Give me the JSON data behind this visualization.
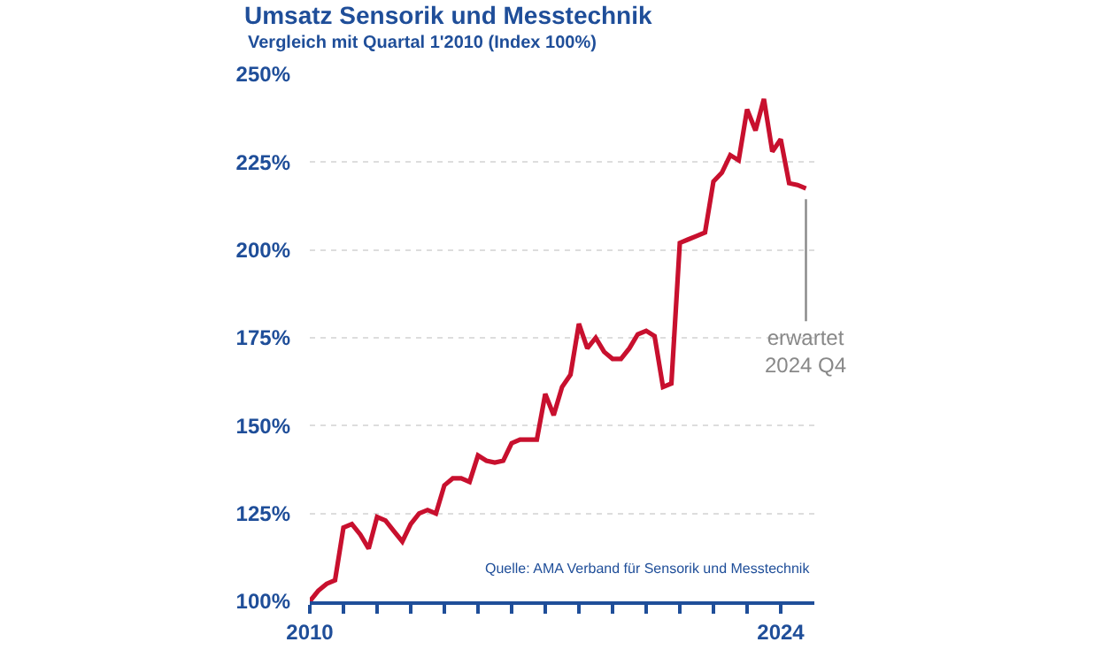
{
  "chart_data": {
    "type": "line",
    "title": "Umsatz Sensorik und Messtechnik",
    "subtitle": "Vergleich mit Quartal 1'2010 (Index 100%)",
    "x": [
      2010.0,
      2010.25,
      2010.5,
      2010.75,
      2011.0,
      2011.25,
      2011.5,
      2011.75,
      2012.0,
      2012.25,
      2012.5,
      2012.75,
      2013.0,
      2013.25,
      2013.5,
      2013.75,
      2014.0,
      2014.25,
      2014.5,
      2014.75,
      2015.0,
      2015.25,
      2015.5,
      2015.75,
      2016.0,
      2016.25,
      2016.5,
      2016.75,
      2017.0,
      2017.25,
      2017.5,
      2017.75,
      2018.0,
      2018.25,
      2018.5,
      2018.75,
      2019.0,
      2019.25,
      2019.5,
      2019.75,
      2020.0,
      2020.25,
      2020.5,
      2020.75,
      2021.0,
      2021.25,
      2021.5,
      2021.75,
      2022.0,
      2022.25,
      2022.5,
      2022.75,
      2023.0,
      2023.25,
      2023.5,
      2023.75,
      2024.0,
      2024.25,
      2024.5,
      2024.75
    ],
    "series": [
      {
        "color": "#c8102e",
        "values": [
          100,
          103,
          105,
          106,
          121,
          122,
          119,
          115,
          124,
          123,
          120,
          117,
          122,
          125,
          126,
          125,
          133,
          135,
          135,
          134,
          141.5,
          140,
          139.5,
          140,
          145,
          146,
          146,
          146,
          159,
          153,
          161,
          164.5,
          179,
          172,
          175,
          171,
          169,
          169,
          172,
          176,
          177,
          175.5,
          161,
          162,
          202,
          203,
          204,
          205,
          219.5,
          222,
          227,
          225.5,
          240,
          234,
          243,
          228,
          231.5,
          219,
          218.5,
          217.5
        ]
      }
    ],
    "xlim": [
      2010,
      2025
    ],
    "xticks": [
      {
        "value": 2010,
        "label": "2010"
      },
      {
        "value": 2011,
        "label": null
      },
      {
        "value": 2012,
        "label": null
      },
      {
        "value": 2013,
        "label": null
      },
      {
        "value": 2014,
        "label": null
      },
      {
        "value": 2015,
        "label": null
      },
      {
        "value": 2016,
        "label": null
      },
      {
        "value": 2017,
        "label": null
      },
      {
        "value": 2018,
        "label": null
      },
      {
        "value": 2019,
        "label": null
      },
      {
        "value": 2020,
        "label": null
      },
      {
        "value": 2021,
        "label": null
      },
      {
        "value": 2022,
        "label": null
      },
      {
        "value": 2023,
        "label": null
      },
      {
        "value": 2024,
        "label": "2024"
      }
    ],
    "ylim": [
      100,
      250
    ],
    "yticks": [
      {
        "value": 100,
        "label": "100%"
      },
      {
        "value": 125,
        "label": "125%"
      },
      {
        "value": 150,
        "label": "150%"
      },
      {
        "value": 175,
        "label": "175%"
      },
      {
        "value": 200,
        "label": "200%"
      },
      {
        "value": 225,
        "label": "225%"
      },
      {
        "value": 250,
        "label": "250%"
      }
    ],
    "grid": "y",
    "marker": "none",
    "line_style": "solid",
    "annotations": [
      {
        "text": "erwartet\n2024 Q4",
        "x": 2024.75,
        "y": 217.5
      },
      "Quelle: AMA Verband für Sensorik und Messtechnik"
    ]
  }
}
